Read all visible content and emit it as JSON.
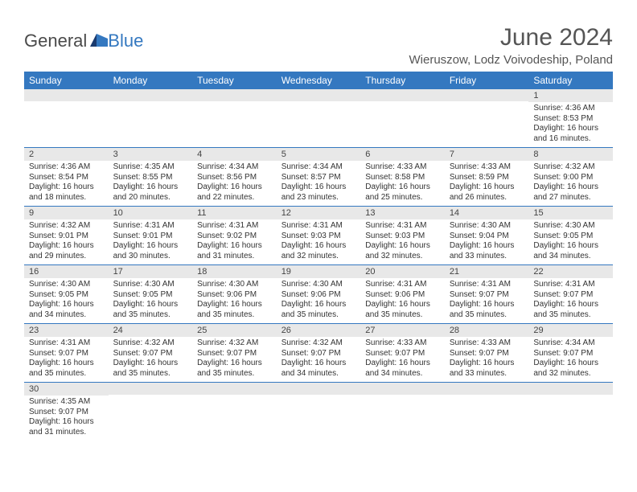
{
  "brand": {
    "text_general": "General",
    "text_blue": "Blue",
    "mark_color": "#3478c0",
    "text_general_color": "#4a4a4a"
  },
  "title": "June 2024",
  "location": "Wieruszow, Lodz Voivodeship, Poland",
  "colors": {
    "header_bg": "#3478c0",
    "header_fg": "#ffffff",
    "daynum_bg": "#e8e8e8",
    "row_border": "#3478c0",
    "page_bg": "#ffffff",
    "text": "#333333"
  },
  "weekdays": [
    "Sunday",
    "Monday",
    "Tuesday",
    "Wednesday",
    "Thursday",
    "Friday",
    "Saturday"
  ],
  "weeks": [
    [
      null,
      null,
      null,
      null,
      null,
      null,
      {
        "n": "1",
        "sunrise": "Sunrise: 4:36 AM",
        "sunset": "Sunset: 8:53 PM",
        "daylight": "Daylight: 16 hours and 16 minutes."
      }
    ],
    [
      {
        "n": "2",
        "sunrise": "Sunrise: 4:36 AM",
        "sunset": "Sunset: 8:54 PM",
        "daylight": "Daylight: 16 hours and 18 minutes."
      },
      {
        "n": "3",
        "sunrise": "Sunrise: 4:35 AM",
        "sunset": "Sunset: 8:55 PM",
        "daylight": "Daylight: 16 hours and 20 minutes."
      },
      {
        "n": "4",
        "sunrise": "Sunrise: 4:34 AM",
        "sunset": "Sunset: 8:56 PM",
        "daylight": "Daylight: 16 hours and 22 minutes."
      },
      {
        "n": "5",
        "sunrise": "Sunrise: 4:34 AM",
        "sunset": "Sunset: 8:57 PM",
        "daylight": "Daylight: 16 hours and 23 minutes."
      },
      {
        "n": "6",
        "sunrise": "Sunrise: 4:33 AM",
        "sunset": "Sunset: 8:58 PM",
        "daylight": "Daylight: 16 hours and 25 minutes."
      },
      {
        "n": "7",
        "sunrise": "Sunrise: 4:33 AM",
        "sunset": "Sunset: 8:59 PM",
        "daylight": "Daylight: 16 hours and 26 minutes."
      },
      {
        "n": "8",
        "sunrise": "Sunrise: 4:32 AM",
        "sunset": "Sunset: 9:00 PM",
        "daylight": "Daylight: 16 hours and 27 minutes."
      }
    ],
    [
      {
        "n": "9",
        "sunrise": "Sunrise: 4:32 AM",
        "sunset": "Sunset: 9:01 PM",
        "daylight": "Daylight: 16 hours and 29 minutes."
      },
      {
        "n": "10",
        "sunrise": "Sunrise: 4:31 AM",
        "sunset": "Sunset: 9:01 PM",
        "daylight": "Daylight: 16 hours and 30 minutes."
      },
      {
        "n": "11",
        "sunrise": "Sunrise: 4:31 AM",
        "sunset": "Sunset: 9:02 PM",
        "daylight": "Daylight: 16 hours and 31 minutes."
      },
      {
        "n": "12",
        "sunrise": "Sunrise: 4:31 AM",
        "sunset": "Sunset: 9:03 PM",
        "daylight": "Daylight: 16 hours and 32 minutes."
      },
      {
        "n": "13",
        "sunrise": "Sunrise: 4:31 AM",
        "sunset": "Sunset: 9:03 PM",
        "daylight": "Daylight: 16 hours and 32 minutes."
      },
      {
        "n": "14",
        "sunrise": "Sunrise: 4:30 AM",
        "sunset": "Sunset: 9:04 PM",
        "daylight": "Daylight: 16 hours and 33 minutes."
      },
      {
        "n": "15",
        "sunrise": "Sunrise: 4:30 AM",
        "sunset": "Sunset: 9:05 PM",
        "daylight": "Daylight: 16 hours and 34 minutes."
      }
    ],
    [
      {
        "n": "16",
        "sunrise": "Sunrise: 4:30 AM",
        "sunset": "Sunset: 9:05 PM",
        "daylight": "Daylight: 16 hours and 34 minutes."
      },
      {
        "n": "17",
        "sunrise": "Sunrise: 4:30 AM",
        "sunset": "Sunset: 9:05 PM",
        "daylight": "Daylight: 16 hours and 35 minutes."
      },
      {
        "n": "18",
        "sunrise": "Sunrise: 4:30 AM",
        "sunset": "Sunset: 9:06 PM",
        "daylight": "Daylight: 16 hours and 35 minutes."
      },
      {
        "n": "19",
        "sunrise": "Sunrise: 4:30 AM",
        "sunset": "Sunset: 9:06 PM",
        "daylight": "Daylight: 16 hours and 35 minutes."
      },
      {
        "n": "20",
        "sunrise": "Sunrise: 4:31 AM",
        "sunset": "Sunset: 9:06 PM",
        "daylight": "Daylight: 16 hours and 35 minutes."
      },
      {
        "n": "21",
        "sunrise": "Sunrise: 4:31 AM",
        "sunset": "Sunset: 9:07 PM",
        "daylight": "Daylight: 16 hours and 35 minutes."
      },
      {
        "n": "22",
        "sunrise": "Sunrise: 4:31 AM",
        "sunset": "Sunset: 9:07 PM",
        "daylight": "Daylight: 16 hours and 35 minutes."
      }
    ],
    [
      {
        "n": "23",
        "sunrise": "Sunrise: 4:31 AM",
        "sunset": "Sunset: 9:07 PM",
        "daylight": "Daylight: 16 hours and 35 minutes."
      },
      {
        "n": "24",
        "sunrise": "Sunrise: 4:32 AM",
        "sunset": "Sunset: 9:07 PM",
        "daylight": "Daylight: 16 hours and 35 minutes."
      },
      {
        "n": "25",
        "sunrise": "Sunrise: 4:32 AM",
        "sunset": "Sunset: 9:07 PM",
        "daylight": "Daylight: 16 hours and 35 minutes."
      },
      {
        "n": "26",
        "sunrise": "Sunrise: 4:32 AM",
        "sunset": "Sunset: 9:07 PM",
        "daylight": "Daylight: 16 hours and 34 minutes."
      },
      {
        "n": "27",
        "sunrise": "Sunrise: 4:33 AM",
        "sunset": "Sunset: 9:07 PM",
        "daylight": "Daylight: 16 hours and 34 minutes."
      },
      {
        "n": "28",
        "sunrise": "Sunrise: 4:33 AM",
        "sunset": "Sunset: 9:07 PM",
        "daylight": "Daylight: 16 hours and 33 minutes."
      },
      {
        "n": "29",
        "sunrise": "Sunrise: 4:34 AM",
        "sunset": "Sunset: 9:07 PM",
        "daylight": "Daylight: 16 hours and 32 minutes."
      }
    ],
    [
      {
        "n": "30",
        "sunrise": "Sunrise: 4:35 AM",
        "sunset": "Sunset: 9:07 PM",
        "daylight": "Daylight: 16 hours and 31 minutes."
      },
      null,
      null,
      null,
      null,
      null,
      null
    ]
  ]
}
